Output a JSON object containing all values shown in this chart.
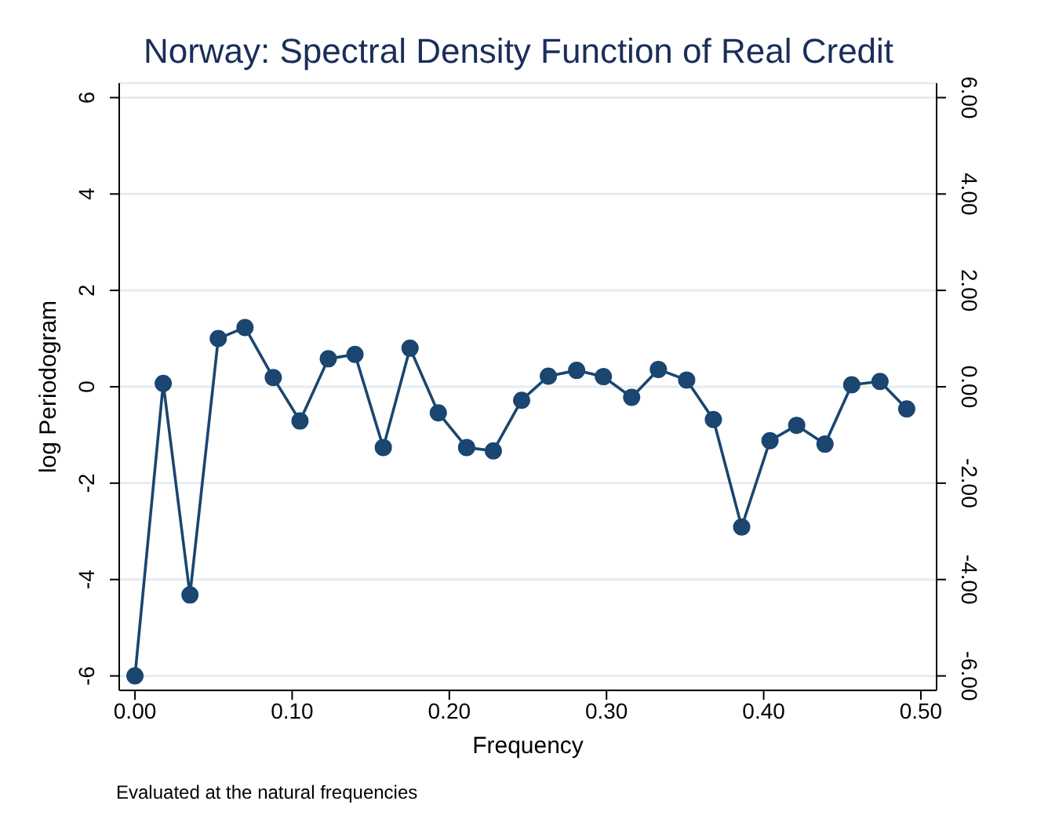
{
  "chart_data": {
    "type": "line",
    "title": "Norway: Spectral Density Function of Real Credit",
    "xlabel": "Frequency",
    "ylabel": "log Periodogram",
    "annotations": [
      "Evaluated at the natural frequencies"
    ],
    "x": [
      0,
      0.018,
      0.035,
      0.053,
      0.07,
      0.088,
      0.105,
      0.123,
      0.14,
      0.158,
      0.175,
      0.193,
      0.211,
      0.228,
      0.246,
      0.263,
      0.281,
      0.298,
      0.316,
      0.333,
      0.351,
      0.368,
      0.386,
      0.404,
      0.421,
      0.439,
      0.456,
      0.474,
      0.491
    ],
    "series": [
      {
        "color": "#1a4670",
        "values": [
          -6.0,
          0.07,
          -4.32,
          1.0,
          1.23,
          0.19,
          -0.71,
          0.58,
          0.67,
          -1.26,
          0.8,
          -0.54,
          -1.26,
          -1.33,
          -0.28,
          0.22,
          0.34,
          0.21,
          -0.22,
          0.36,
          0.14,
          -0.68,
          -2.91,
          -1.12,
          -0.8,
          -1.19,
          0.04,
          0.11,
          -0.46
        ]
      }
    ],
    "xlim": [
      -0.01,
      0.51
    ],
    "xticks": [
      {
        "value": 0,
        "label": "0.00"
      },
      {
        "value": 0.1,
        "label": "0.10"
      },
      {
        "value": 0.2,
        "label": "0.20"
      },
      {
        "value": 0.3,
        "label": "0.30"
      },
      {
        "value": 0.4,
        "label": "0.40"
      },
      {
        "value": 0.5,
        "label": "0.50"
      }
    ],
    "ylim": [
      -6.3,
      6.3
    ],
    "yticks": [
      -6,
      -4,
      -2,
      0,
      2,
      4,
      6
    ],
    "y2lim": [
      -6.3,
      6.3
    ],
    "y2ticks": [
      {
        "value": -6,
        "label": "-6.00"
      },
      {
        "value": -4,
        "label": "-4.00"
      },
      {
        "value": -2,
        "label": "-2.00"
      },
      {
        "value": 0,
        "label": "0.00"
      },
      {
        "value": 2,
        "label": "2.00"
      },
      {
        "value": 4,
        "label": "4.00"
      },
      {
        "value": 6,
        "label": "6.00"
      }
    ],
    "grid": "y",
    "marker": "circle",
    "line_style": "solid"
  }
}
